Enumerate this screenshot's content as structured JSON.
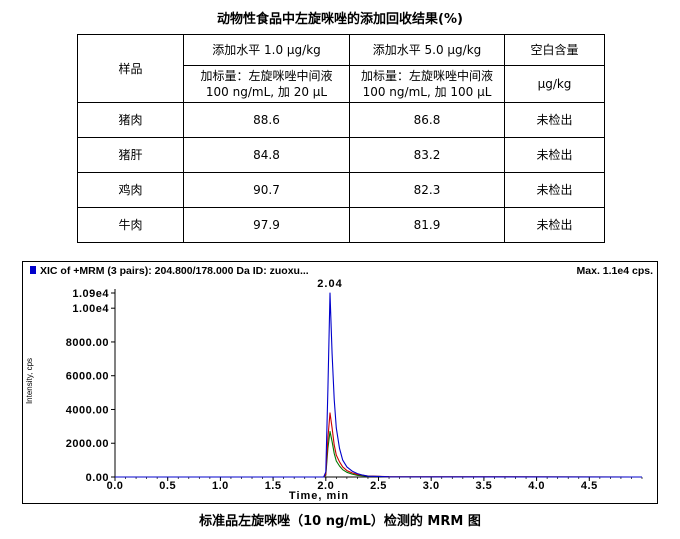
{
  "table": {
    "title": "动物性食品中左旋咪唑的添加回收结果(%)",
    "sample_header": "样品",
    "level1_header": "添加水平 1.0 μg/kg",
    "level2_header": "添加水平 5.0 μg/kg",
    "blank_header": "空白含量",
    "level1_sub_line1": "加标量：左旋咪唑中间液",
    "level1_sub_line2": "100 ng/mL, 加 20 μL",
    "level2_sub_line1": "加标量：左旋咪唑中间液",
    "level2_sub_line2": "100 ng/mL, 加 100 μL",
    "blank_unit": "μg/kg",
    "rows": [
      {
        "sample": "猪肉",
        "level1": "88.6",
        "level2": "86.8",
        "blank": "未检出"
      },
      {
        "sample": "猪肝",
        "level1": "84.8",
        "level2": "83.2",
        "blank": "未检出"
      },
      {
        "sample": "鸡肉",
        "level1": "90.7",
        "level2": "82.3",
        "blank": "未检出"
      },
      {
        "sample": "牛肉",
        "level1": "97.9",
        "level2": "81.9",
        "blank": "未检出"
      }
    ]
  },
  "chart_data": {
    "type": "line",
    "header_left": "XIC of +MRM (3 pairs): 204.800/178.000 Da ID: zuoxu...",
    "header_right": "Max. 1.1e4 cps.",
    "xlabel": "Time, min",
    "ylabel": "Intensity, cps",
    "xlim": [
      0.0,
      5.0
    ],
    "ylim": [
      0,
      10900
    ],
    "x_ticks": [
      0.0,
      0.5,
      1.0,
      1.5,
      2.0,
      2.5,
      3.0,
      3.5,
      4.0,
      4.5
    ],
    "x_tick_labels": [
      "0.0",
      "0.5",
      "1.0",
      "1.5",
      "2.0",
      "2.5",
      "3.0",
      "3.5",
      "4.0",
      "4.5"
    ],
    "y_ticks": [
      0,
      2000,
      4000,
      6000,
      8000,
      10000,
      10900
    ],
    "y_tick_labels": [
      "0.00",
      "2000.00",
      "4000.00",
      "6000.00",
      "8000.00",
      "1.00e4",
      "1.09e4"
    ],
    "peak_label": "2.04",
    "peak_label_x": 2.04,
    "series": [
      {
        "color": "#0000cc",
        "x": [
          0.0,
          1.9,
          1.98,
          2.0,
          2.02,
          2.04,
          2.06,
          2.08,
          2.1,
          2.13,
          2.16,
          2.2,
          2.25,
          2.3,
          2.35,
          2.4,
          2.6,
          5.0
        ],
        "y": [
          0,
          0,
          0,
          300,
          5200,
          10900,
          7300,
          4600,
          2900,
          1700,
          1000,
          600,
          350,
          200,
          110,
          50,
          10,
          0
        ]
      },
      {
        "color": "#cc0000",
        "x": [
          0.0,
          1.9,
          1.98,
          2.0,
          2.02,
          2.04,
          2.06,
          2.08,
          2.1,
          2.13,
          2.16,
          2.2,
          2.25,
          2.3,
          2.4,
          2.6,
          5.0
        ],
        "y": [
          0,
          0,
          0,
          150,
          2300,
          3800,
          2900,
          1900,
          1300,
          900,
          600,
          380,
          240,
          150,
          60,
          15,
          0
        ]
      },
      {
        "color": "#007700",
        "x": [
          0.0,
          1.9,
          1.98,
          2.0,
          2.02,
          2.04,
          2.06,
          2.08,
          2.1,
          2.13,
          2.16,
          2.2,
          2.25,
          2.3,
          2.4,
          2.6,
          5.0
        ],
        "y": [
          0,
          0,
          0,
          100,
          1700,
          2700,
          2100,
          1400,
          950,
          650,
          430,
          280,
          170,
          100,
          45,
          10,
          0
        ]
      }
    ],
    "caption": "标准品左旋咪唑（10 ng/mL）检测的 MRM 图"
  },
  "colors": {
    "legend_marker": "#0000cc",
    "axis": "#000000"
  }
}
